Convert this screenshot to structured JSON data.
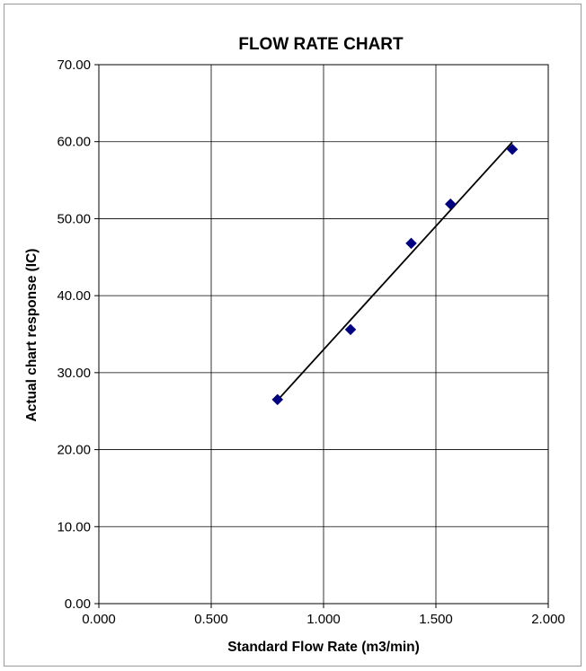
{
  "chart_data": {
    "type": "scatter",
    "title": "FLOW RATE CHART",
    "xlabel": "Standard Flow Rate (m3/min)",
    "ylabel": "Actual chart response (IC)",
    "xlim": [
      0,
      2
    ],
    "ylim": [
      0,
      70
    ],
    "x_ticks": [
      "0.000",
      "0.500",
      "1.000",
      "1.500",
      "2.000"
    ],
    "y_ticks": [
      "0.00",
      "10.00",
      "20.00",
      "30.00",
      "40.00",
      "50.00",
      "60.00",
      "70.00"
    ],
    "grid": true,
    "legend": "none",
    "series": [
      {
        "marker": "diamond",
        "color": "#000080",
        "points": [
          {
            "x": 0.795,
            "y": 26.5
          },
          {
            "x": 1.12,
            "y": 35.6
          },
          {
            "x": 1.39,
            "y": 46.8
          },
          {
            "x": 1.565,
            "y": 51.9
          },
          {
            "x": 1.84,
            "y": 59.0
          }
        ]
      }
    ],
    "trendline": {
      "type": "linear",
      "color": "#000000"
    }
  }
}
